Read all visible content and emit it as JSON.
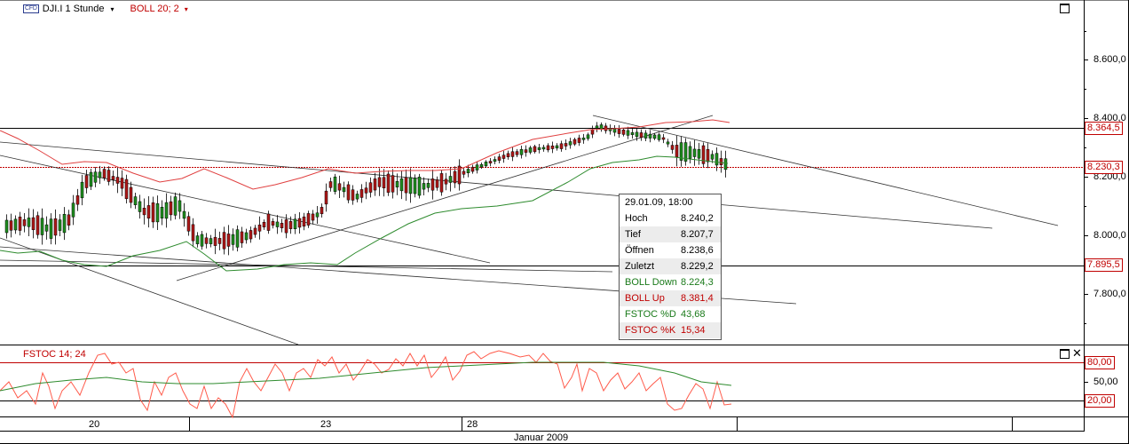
{
  "header": {
    "cfd_badge": "CFD",
    "instrument": "DJI.I 1 Stunde",
    "dropdown_arrow": "▾",
    "indicator": "BOLL 20; 2",
    "indicator_arrow": "▾"
  },
  "price_axis": {
    "labels": [
      "8.600,0",
      "8.400,0",
      "8.200,0",
      "8.000,0",
      "7.800,0"
    ],
    "boxes": [
      "8.364,5",
      "8.230,3",
      "7.895,5"
    ]
  },
  "oscillator": {
    "label": "FSTOC 14; 24",
    "axis_labels": [
      "80,00",
      "50,00",
      "20,00"
    ],
    "close_glyph": "✕"
  },
  "time_axis": {
    "labels": [
      "20",
      "23",
      "28"
    ],
    "month": "Januar 2009"
  },
  "tooltip": {
    "date": "29.01.09, 18:00",
    "rows": [
      {
        "label": "Hoch",
        "value": "8.240,2"
      },
      {
        "label": "Tief",
        "value": "8.207,7"
      },
      {
        "label": "Öffnen",
        "value": "8.238,6"
      },
      {
        "label": "Zuletzt",
        "value": "8.229,2"
      },
      {
        "label": "BOLL Down",
        "value": "8.224,3"
      },
      {
        "label": "BOLL Up",
        "value": "8.381,4"
      },
      {
        "label": "FSTOC %D",
        "value": "43,68"
      },
      {
        "label": "FSTOC %K",
        "value": "15,34"
      }
    ]
  },
  "colors": {
    "boll_up": "#e04040",
    "boll_down": "#2e8b2e",
    "bear_candle": "#b01818",
    "bull_candle": "#1f8f1f",
    "hline_red": "#c00000",
    "fstoc_k": "#ff5a4a",
    "fstoc_d": "#2e8b2e"
  },
  "icons": [
    "maximize-icon",
    "close-icon"
  ]
}
